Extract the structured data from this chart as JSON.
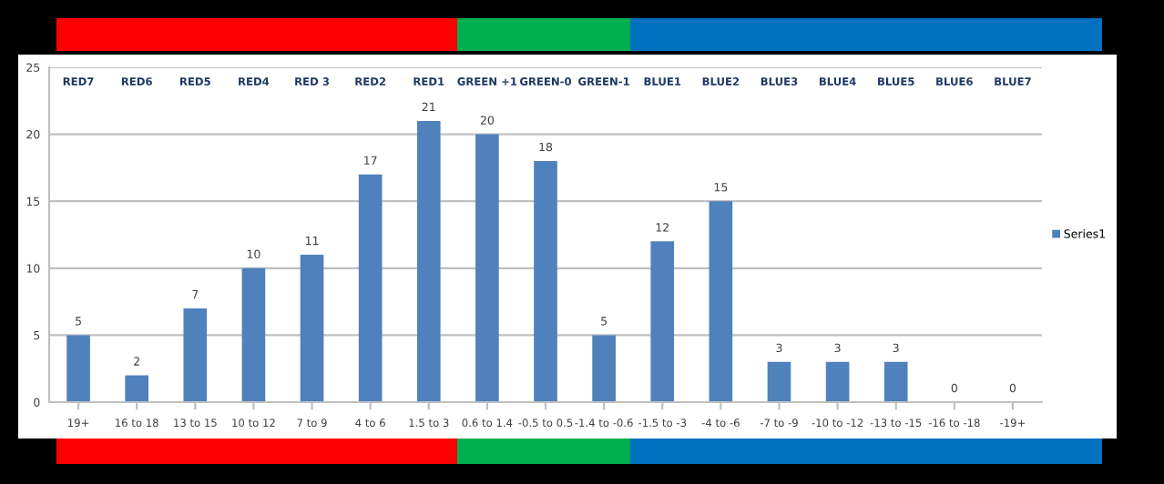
{
  "chart_data": {
    "type": "bar",
    "categories": [
      "19+",
      "16 to 18",
      "13 to 15",
      "10 to 12",
      "7 to 9",
      "4 to 6",
      "1.5 to 3",
      "0.6 to 1.4",
      "-0.5 to 0.5",
      "-1.4 to -0.6",
      "-1.5 to -3",
      "-4 to -6",
      "-7 to -9",
      "-10 to -12",
      "-13 to -15",
      "-16 to -18",
      "-19+"
    ],
    "series": [
      {
        "name": "Series1",
        "color": "#4f81bd",
        "values": [
          5,
          2,
          7,
          10,
          11,
          17,
          21,
          20,
          18,
          5,
          12,
          15,
          3,
          3,
          3,
          0,
          0
        ]
      }
    ],
    "ylim": [
      0,
      25
    ],
    "yticks": [
      0,
      5,
      10,
      15,
      20,
      25
    ],
    "grid": "y",
    "legend": "right",
    "data_labels": true,
    "annotations": [
      "RED7",
      "RED6",
      "RED5",
      "RED4",
      "RED 3",
      "RED2",
      "RED1",
      "GREEN +1",
      "GREEN-0",
      "GREEN-1",
      "BLUE1",
      "BLUE2",
      "BLUE3",
      "BLUE4",
      "BLUE5",
      "BLUE6",
      "BLUE7"
    ]
  }
}
